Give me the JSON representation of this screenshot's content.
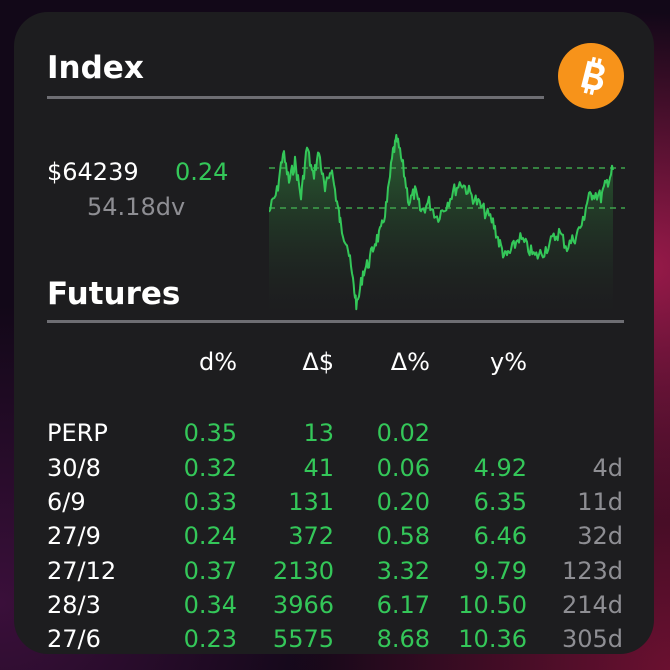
{
  "index": {
    "title": "Index",
    "price": "$64239",
    "change": "0.24",
    "volume": "54.18dv",
    "icon": "bitcoin-icon"
  },
  "futures": {
    "title": "Futures",
    "headers": [
      "",
      "d%",
      "Δ$",
      "Δ%",
      "y%",
      ""
    ],
    "rows": [
      {
        "label": "PERP",
        "d": "0.35",
        "dusd": "13",
        "dpct": "0.02",
        "y": "",
        "days": ""
      },
      {
        "label": "30/8",
        "d": "0.32",
        "dusd": "41",
        "dpct": "0.06",
        "y": "4.92",
        "days": "4d"
      },
      {
        "label": "6/9",
        "d": "0.33",
        "dusd": "131",
        "dpct": "0.20",
        "y": "6.35",
        "days": "11d"
      },
      {
        "label": "27/9",
        "d": "0.24",
        "dusd": "372",
        "dpct": "0.58",
        "y": "6.46",
        "days": "32d"
      },
      {
        "label": "27/12",
        "d": "0.37",
        "dusd": "2130",
        "dpct": "3.32",
        "y": "9.79",
        "days": "123d"
      },
      {
        "label": "28/3",
        "d": "0.34",
        "dusd": "3966",
        "dpct": "6.17",
        "y": "10.50",
        "days": "214d"
      },
      {
        "label": "27/6",
        "d": "0.23",
        "dusd": "5575",
        "dpct": "8.68",
        "y": "10.36",
        "days": "305d"
      }
    ]
  },
  "colors": {
    "accent_green": "#34c759",
    "muted_grey": "#8e8e93",
    "bitcoin_orange": "#f7931a",
    "card_bg": "#1d1d1f"
  }
}
